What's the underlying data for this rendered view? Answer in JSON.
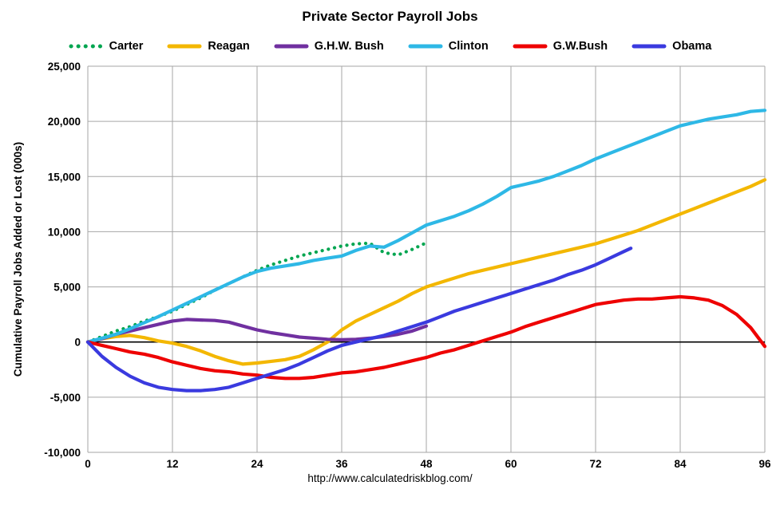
{
  "page": {
    "title": "Private Sector Payroll Jobs",
    "footer_url": "http://www.calculatedriskblog.com/"
  },
  "chart_data": {
    "type": "line",
    "title": "Private Sector Payroll Jobs",
    "xlabel": "",
    "ylabel": "Cumulative Payroll Jobs Added or  Lost (000s)",
    "xlim": [
      0,
      96
    ],
    "ylim": [
      -10000,
      25000
    ],
    "xticks": [
      0,
      12,
      24,
      36,
      48,
      60,
      72,
      84,
      96
    ],
    "yticks": [
      -10000,
      -5000,
      0,
      5000,
      10000,
      15000,
      20000,
      25000
    ],
    "grid": true,
    "grid_color": "#a6a6a6",
    "zero_line_color": "#000000",
    "legend_position": "top",
    "series": [
      {
        "name": "Carter",
        "color": "#00A550",
        "style": "dotted",
        "x": [
          0,
          2,
          4,
          6,
          8,
          10,
          12,
          14,
          16,
          18,
          20,
          22,
          24,
          26,
          28,
          30,
          32,
          34,
          36,
          38,
          40,
          42,
          44,
          46,
          48
        ],
        "y": [
          0,
          500,
          1000,
          1400,
          1900,
          2300,
          2800,
          3400,
          4000,
          4700,
          5300,
          5900,
          6500,
          7000,
          7400,
          7800,
          8100,
          8400,
          8700,
          8900,
          8950,
          8100,
          7900,
          8400,
          9000
        ]
      },
      {
        "name": "Reagan",
        "color": "#F3B700",
        "style": "solid",
        "x": [
          0,
          2,
          4,
          6,
          8,
          10,
          12,
          14,
          16,
          18,
          20,
          22,
          24,
          26,
          28,
          30,
          32,
          34,
          36,
          38,
          40,
          42,
          44,
          46,
          48,
          50,
          52,
          54,
          56,
          58,
          60,
          62,
          64,
          66,
          68,
          70,
          72,
          74,
          76,
          78,
          80,
          82,
          84,
          86,
          88,
          90,
          92,
          94,
          96
        ],
        "y": [
          0,
          300,
          500,
          600,
          400,
          100,
          -100,
          -400,
          -800,
          -1300,
          -1700,
          -2000,
          -1900,
          -1750,
          -1600,
          -1300,
          -700,
          0,
          1100,
          1900,
          2500,
          3100,
          3700,
          4400,
          5000,
          5400,
          5800,
          6200,
          6500,
          6800,
          7100,
          7400,
          7700,
          8000,
          8300,
          8600,
          8900,
          9300,
          9700,
          10100,
          10600,
          11100,
          11600,
          12100,
          12600,
          13100,
          13600,
          14100,
          14700
        ]
      },
      {
        "name": "G.H.W. Bush",
        "color": "#7030A0",
        "style": "solid",
        "x": [
          0,
          2,
          4,
          6,
          8,
          10,
          12,
          14,
          16,
          18,
          20,
          22,
          24,
          26,
          28,
          30,
          32,
          34,
          36,
          38,
          40,
          42,
          44,
          46,
          48
        ],
        "y": [
          0,
          300,
          700,
          1000,
          1300,
          1600,
          1900,
          2050,
          2000,
          1950,
          1800,
          1450,
          1100,
          850,
          650,
          450,
          350,
          250,
          200,
          250,
          350,
          500,
          700,
          1000,
          1450
        ]
      },
      {
        "name": "Clinton",
        "color": "#2EB8E6",
        "style": "solid",
        "x": [
          0,
          2,
          4,
          6,
          8,
          10,
          12,
          14,
          16,
          18,
          20,
          22,
          24,
          26,
          28,
          30,
          32,
          34,
          36,
          38,
          40,
          42,
          44,
          46,
          48,
          50,
          52,
          54,
          56,
          58,
          60,
          62,
          64,
          66,
          68,
          70,
          72,
          74,
          76,
          78,
          80,
          82,
          84,
          86,
          88,
          90,
          92,
          94,
          96
        ],
        "y": [
          0,
          350,
          700,
          1200,
          1750,
          2300,
          2900,
          3500,
          4100,
          4700,
          5300,
          5900,
          6400,
          6700,
          6900,
          7100,
          7400,
          7600,
          7800,
          8300,
          8700,
          8600,
          9200,
          9900,
          10600,
          11000,
          11400,
          11900,
          12500,
          13200,
          14000,
          14300,
          14600,
          15000,
          15500,
          16000,
          16600,
          17100,
          17600,
          18100,
          18600,
          19100,
          19600,
          19900,
          20200,
          20400,
          20600,
          20900,
          21000
        ]
      },
      {
        "name": "G.W.Bush",
        "color": "#EE0000",
        "style": "solid",
        "x": [
          0,
          2,
          4,
          6,
          8,
          10,
          12,
          14,
          16,
          18,
          20,
          22,
          24,
          26,
          28,
          30,
          32,
          34,
          36,
          38,
          40,
          42,
          44,
          46,
          48,
          50,
          52,
          54,
          56,
          58,
          60,
          62,
          64,
          66,
          68,
          70,
          72,
          74,
          76,
          78,
          80,
          82,
          84,
          86,
          88,
          90,
          92,
          94,
          96
        ],
        "y": [
          0,
          -300,
          -600,
          -900,
          -1100,
          -1400,
          -1800,
          -2100,
          -2400,
          -2600,
          -2700,
          -2900,
          -3000,
          -3200,
          -3300,
          -3300,
          -3200,
          -3000,
          -2800,
          -2700,
          -2500,
          -2300,
          -2000,
          -1700,
          -1400,
          -1000,
          -700,
          -300,
          100,
          500,
          900,
          1400,
          1800,
          2200,
          2600,
          3000,
          3400,
          3600,
          3800,
          3900,
          3900,
          4000,
          4100,
          4000,
          3800,
          3300,
          2500,
          1300,
          -400
        ]
      },
      {
        "name": "Obama",
        "color": "#3A3ADF",
        "style": "solid",
        "x": [
          0,
          2,
          4,
          6,
          8,
          10,
          12,
          14,
          16,
          18,
          20,
          22,
          24,
          26,
          28,
          30,
          32,
          34,
          36,
          38,
          40,
          42,
          44,
          46,
          48,
          50,
          52,
          54,
          56,
          58,
          60,
          62,
          64,
          66,
          68,
          70,
          72,
          74,
          76,
          77
        ],
        "y": [
          0,
          -1300,
          -2300,
          -3100,
          -3700,
          -4100,
          -4300,
          -4400,
          -4400,
          -4300,
          -4100,
          -3700,
          -3300,
          -2900,
          -2500,
          -2000,
          -1400,
          -800,
          -300,
          0,
          300,
          600,
          1000,
          1400,
          1800,
          2300,
          2800,
          3200,
          3600,
          4000,
          4400,
          4800,
          5200,
          5600,
          6100,
          6500,
          7000,
          7600,
          8200,
          8500
        ]
      }
    ]
  }
}
